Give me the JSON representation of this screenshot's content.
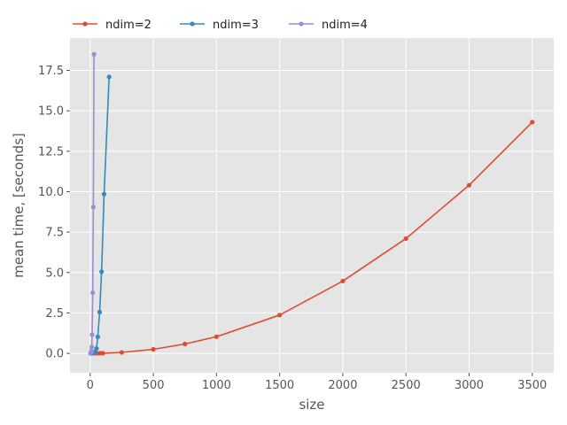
{
  "chart_data": {
    "type": "line",
    "xlabel": "size",
    "ylabel": "mean time, [seconds]",
    "xlim": [
      -160,
      3670
    ],
    "ylim": [
      -1.2,
      19.5
    ],
    "xticks": [
      0,
      500,
      1000,
      1500,
      2000,
      2500,
      3000,
      3500
    ],
    "yticks": [
      0.0,
      2.5,
      5.0,
      7.5,
      10.0,
      12.5,
      15.0,
      17.5
    ],
    "xtick_labels": [
      "0",
      "500",
      "1000",
      "1500",
      "2000",
      "2500",
      "3000",
      "3500"
    ],
    "ytick_labels": [
      "0.0",
      "2.5",
      "5.0",
      "7.5",
      "10.0",
      "12.5",
      "15.0",
      "17.5"
    ],
    "grid": true,
    "legend_position": "top-left-outside",
    "series": [
      {
        "name": "ndim=2",
        "color": "#e24a33",
        "x": [
          10,
          25,
          50,
          75,
          100,
          250,
          500,
          750,
          1000,
          1500,
          2000,
          2500,
          3000,
          3500
        ],
        "y": [
          0.0,
          0.0,
          0.0,
          0.01,
          0.01,
          0.06,
          0.25,
          0.58,
          1.03,
          2.37,
          4.47,
          7.1,
          10.4,
          14.3
        ]
      },
      {
        "name": "ndim=3",
        "color": "#348abd",
        "x": [
          5,
          10,
          15,
          20,
          25,
          30,
          40,
          50,
          60,
          75,
          90,
          110,
          150
        ],
        "y": [
          0.0,
          0.0,
          0.0,
          0.01,
          0.02,
          0.04,
          0.09,
          0.3,
          1.02,
          2.55,
          5.05,
          9.85,
          17.1
        ]
      },
      {
        "name": "ndim=4",
        "color": "#988ed5",
        "x": [
          2,
          4,
          6,
          8,
          10,
          12,
          15,
          20,
          25,
          30
        ],
        "y": [
          0.0,
          0.01,
          0.03,
          0.07,
          0.15,
          0.4,
          1.15,
          3.75,
          9.05,
          18.5
        ]
      }
    ]
  }
}
